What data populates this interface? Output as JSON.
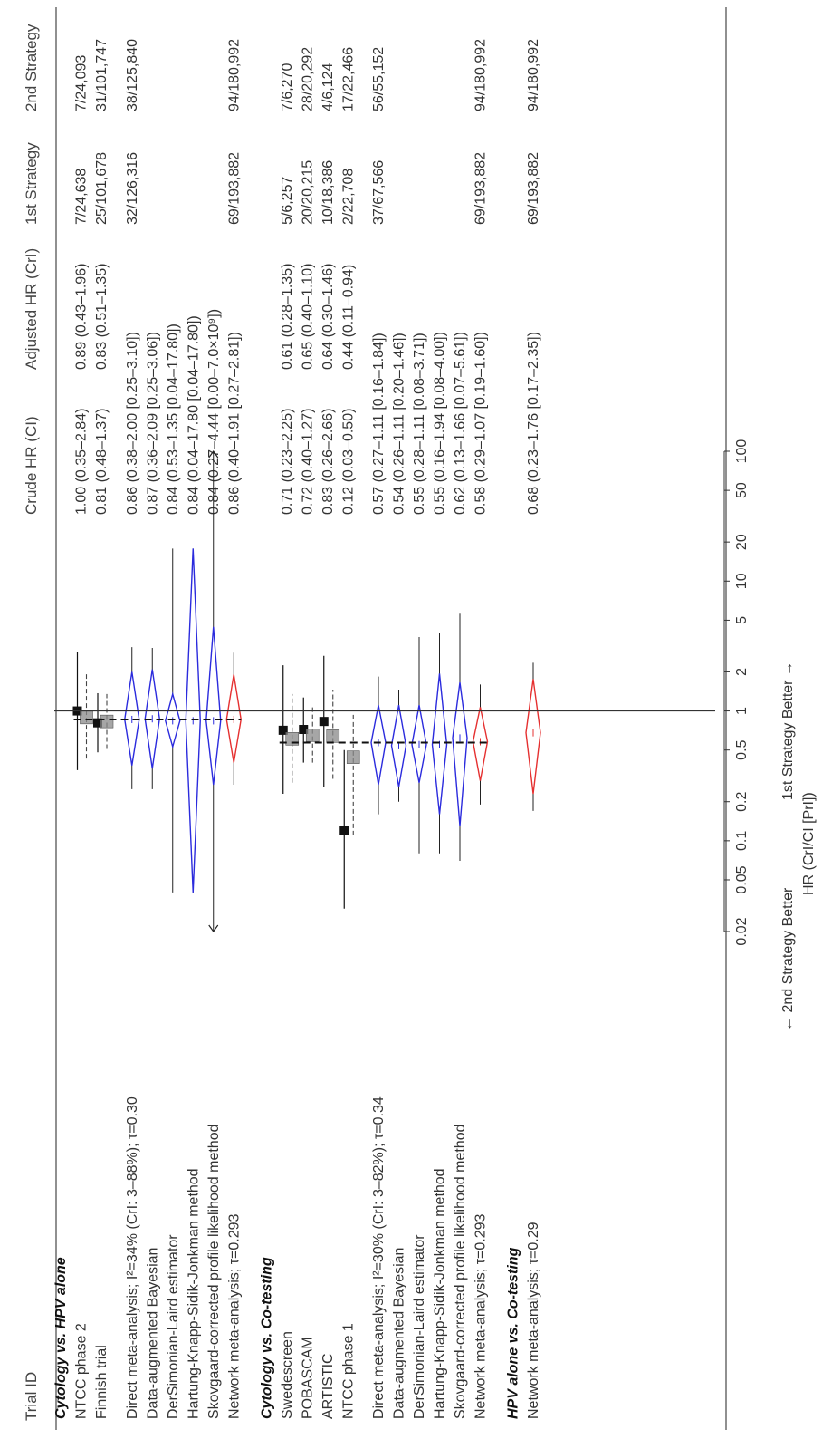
{
  "headers": {
    "trial_id": "Trial ID",
    "crude": "Crude HR (CI)",
    "adjusted": "Adjusted HR (CrI)",
    "first": "1st Strategy",
    "second": "2nd Strategy"
  },
  "axis": {
    "ticks": [
      "0.02",
      "0.05",
      "0.1",
      "0.2",
      "0.5",
      "1",
      "2",
      "5",
      "10",
      "20",
      "50",
      "100"
    ],
    "left_caption": "← 2nd Strategy Better",
    "right_caption": "1st Strategy Better →",
    "xlabel": "HR (CrI/CI [PrI])"
  },
  "colors": {
    "pooled": "#2b2bdd",
    "network": "#e53030",
    "study": "#111111",
    "study_box": "#888888"
  },
  "chart_data": {
    "type": "forest",
    "scale": "log",
    "xlim": [
      0.02,
      100
    ],
    "reference_line": 1,
    "groups": [
      {
        "title": "Cytology vs. HPV alone",
        "rows": [
          {
            "label": "NTCC phase 2",
            "kind": "study",
            "est": 1.0,
            "lo": 0.35,
            "hi": 2.84,
            "adj_est": 0.89,
            "adj_lo": 0.43,
            "adj_hi": 1.96,
            "crude": "1.00 (0.35–2.84)",
            "adjusted": "0.89 (0.43–1.96)",
            "first": "7/24,638",
            "second": "7/24,093"
          },
          {
            "label": "Finnish trial",
            "kind": "study",
            "est": 0.81,
            "lo": 0.48,
            "hi": 1.37,
            "adj_est": 0.83,
            "adj_lo": 0.51,
            "adj_hi": 1.35,
            "crude": "0.81 (0.48–1.37)",
            "adjusted": "0.83 (0.51–1.35)",
            "first": "25/101,678",
            "second": "31/101,747"
          },
          {
            "label": "",
            "kind": "spacer"
          },
          {
            "label": "Direct meta-analysis; I²=34% (CrI: 3–88%); τ=0.30",
            "kind": "pooled",
            "est": 0.86,
            "lo": 0.38,
            "hi": 2.0,
            "plo": 0.25,
            "phi": 3.1,
            "crude": "0.86 (0.38–2.00 [0.25–3.10])",
            "adjusted": "",
            "first": "32/126,316",
            "second": "38/125,840"
          },
          {
            "label": "Data-augmented Bayesian",
            "kind": "pooled",
            "est": 0.87,
            "lo": 0.36,
            "hi": 2.09,
            "plo": 0.25,
            "phi": 3.06,
            "crude": "0.87 (0.36–2.09 [0.25–3.06])",
            "adjusted": "",
            "first": "",
            "second": ""
          },
          {
            "label": "DerSimonian-Laird estimator",
            "kind": "pooled",
            "est": 0.84,
            "lo": 0.53,
            "hi": 1.35,
            "plo": 0.04,
            "phi": 17.8,
            "crude": "0.84 (0.53–1.35 [0.04–17.80])",
            "adjusted": "",
            "first": "",
            "second": ""
          },
          {
            "label": "Hartung-Knapp-Sidik-Jonkman method",
            "kind": "pooled",
            "est": 0.84,
            "lo": 0.04,
            "hi": 17.8,
            "plo": 0.04,
            "phi": 17.8,
            "crude": "0.84 (0.04–17.80 [0.04–17.80])",
            "adjusted": "",
            "first": "",
            "second": ""
          },
          {
            "label": "Skovgaard-corrected profile likelihood method",
            "kind": "pooled",
            "est": 0.84,
            "lo": 0.27,
            "hi": 4.44,
            "plo": 0.02,
            "phi": 100,
            "arrows": true,
            "crude": "0.84 (0.27–4.44 [0.00–7.0×10⁹])",
            "adjusted": "",
            "first": "",
            "second": ""
          },
          {
            "label": "Network meta-analysis; τ=0.293",
            "kind": "network",
            "est": 0.86,
            "lo": 0.4,
            "hi": 1.91,
            "plo": 0.27,
            "phi": 2.81,
            "crude": "0.86 (0.40–1.91 [0.27–2.81])",
            "adjusted": "",
            "first": "69/193,882",
            "second": "94/180,992"
          }
        ]
      },
      {
        "title": "Cytology vs. Co-testing",
        "rows": [
          {
            "label": "Swedescreen",
            "kind": "study",
            "est": 0.71,
            "lo": 0.23,
            "hi": 2.25,
            "adj_est": 0.61,
            "adj_lo": 0.28,
            "adj_hi": 1.35,
            "crude": "0.71 (0.23–2.25)",
            "adjusted": "0.61 (0.28–1.35)",
            "first": "5/6,257",
            "second": "7/6,270"
          },
          {
            "label": "POBASCAM",
            "kind": "study",
            "est": 0.72,
            "lo": 0.4,
            "hi": 1.27,
            "adj_est": 0.65,
            "adj_lo": 0.4,
            "adj_hi": 1.1,
            "crude": "0.72 (0.40–1.27)",
            "adjusted": "0.65 (0.40–1.10)",
            "first": "20/20,215",
            "second": "28/20,292"
          },
          {
            "label": "ARTISTIC",
            "kind": "study",
            "est": 0.83,
            "lo": 0.26,
            "hi": 2.66,
            "adj_est": 0.64,
            "adj_lo": 0.3,
            "adj_hi": 1.46,
            "crude": "0.83 (0.26–2.66)",
            "adjusted": "0.64 (0.30–1.46)",
            "first": "10/18,386",
            "second": "4/6,124"
          },
          {
            "label": "NTCC phase 1",
            "kind": "study",
            "est": 0.12,
            "lo": 0.03,
            "hi": 0.5,
            "adj_est": 0.44,
            "adj_lo": 0.11,
            "adj_hi": 0.94,
            "crude": "0.12 (0.03–0.50)",
            "adjusted": "0.44 (0.11–0.94)",
            "first": "2/22,708",
            "second": "17/22,466"
          },
          {
            "label": "",
            "kind": "spacer"
          },
          {
            "label": "Direct meta-analysis; I²=30% (CrI: 3–82%); τ=0.34",
            "kind": "pooled",
            "est": 0.57,
            "lo": 0.27,
            "hi": 1.11,
            "plo": 0.16,
            "phi": 1.84,
            "crude": "0.57 (0.27–1.11 [0.16–1.84])",
            "adjusted": "",
            "first": "37/67,566",
            "second": "56/55,152"
          },
          {
            "label": "Data-augmented Bayesian",
            "kind": "pooled",
            "est": 0.54,
            "lo": 0.26,
            "hi": 1.11,
            "plo": 0.2,
            "phi": 1.46,
            "crude": "0.54 (0.26–1.11 [0.20–1.46])",
            "adjusted": "",
            "first": "",
            "second": ""
          },
          {
            "label": "DerSimonian-Laird estimator",
            "kind": "pooled",
            "est": 0.55,
            "lo": 0.28,
            "hi": 1.11,
            "plo": 0.08,
            "phi": 3.71,
            "crude": "0.55 (0.28–1.11 [0.08–3.71])",
            "adjusted": "",
            "first": "",
            "second": ""
          },
          {
            "label": "Hartung-Knapp-Sidik-Jonkman method",
            "kind": "pooled",
            "est": 0.55,
            "lo": 0.16,
            "hi": 1.94,
            "plo": 0.08,
            "phi": 4.0,
            "crude": "0.55 (0.16–1.94 [0.08–4.00])",
            "adjusted": "",
            "first": "",
            "second": ""
          },
          {
            "label": "Skovgaard-corrected profile likelihood method",
            "kind": "pooled",
            "est": 0.62,
            "lo": 0.13,
            "hi": 1.66,
            "plo": 0.07,
            "phi": 5.61,
            "crude": "0.62 (0.13–1.66 [0.07–5.61])",
            "adjusted": "",
            "first": "",
            "second": ""
          },
          {
            "label": "Network meta-analysis; τ=0.293",
            "kind": "network",
            "est": 0.58,
            "lo": 0.29,
            "hi": 1.07,
            "plo": 0.19,
            "phi": 1.6,
            "crude": "0.58 (0.29–1.07 [0.19–1.60])",
            "adjusted": "",
            "first": "69/193,882",
            "second": "94/180,992"
          }
        ]
      },
      {
        "title": "HPV alone vs. Co-testing",
        "rows": [
          {
            "label": "Network meta-analysis; τ=0.29",
            "kind": "network",
            "est": 0.68,
            "lo": 0.23,
            "hi": 1.76,
            "plo": 0.17,
            "phi": 2.35,
            "crude": "0.68 (0.23–1.76 [0.17–2.35])",
            "adjusted": "",
            "first": "69/193,882",
            "second": "94/180,992"
          }
        ]
      }
    ]
  }
}
